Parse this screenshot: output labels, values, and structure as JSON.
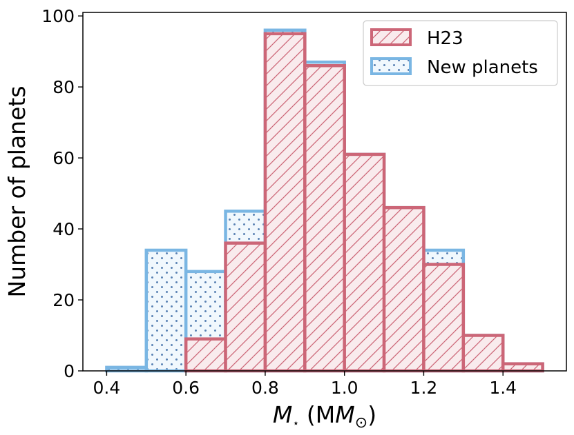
{
  "chart_data": {
    "type": "bar",
    "subtype": "overlaid-histogram",
    "xlabel_main": "M",
    "xlabel_sub": "⋆",
    "xlabel_unit_open": " (M",
    "xlabel_unit_sub": "⊙",
    "xlabel_unit_close": ")",
    "ylabel": "Number of planets",
    "xlim": [
      0.34,
      1.56
    ],
    "ylim": [
      0,
      101
    ],
    "xticks": [
      0.4,
      0.6,
      0.8,
      1.0,
      1.2,
      1.4
    ],
    "xtick_labels": [
      "0.4",
      "0.6",
      "0.8",
      "1.0",
      "1.2",
      "1.4"
    ],
    "yticks": [
      0,
      20,
      40,
      60,
      80,
      100
    ],
    "ytick_labels": [
      "0",
      "20",
      "40",
      "60",
      "80",
      "100"
    ],
    "bin_edges": [
      0.4,
      0.5,
      0.6,
      0.7,
      0.8,
      0.9,
      1.0,
      1.1,
      1.2,
      1.3,
      1.4,
      1.5
    ],
    "series": [
      {
        "name": "New planets",
        "legend_label": "New planets",
        "edge_color": "#7ab6e3",
        "fill_color": "#f1f8fd",
        "pattern": "dots",
        "values": [
          1,
          34,
          28,
          45,
          96,
          87,
          61,
          46,
          34,
          10,
          2
        ]
      },
      {
        "name": "H23",
        "legend_label": "H23",
        "edge_color": "#cc6677",
        "fill_color": "#f9ebed",
        "pattern": "hatch",
        "values": [
          0,
          0,
          9,
          36,
          95,
          86,
          61,
          46,
          30,
          10,
          2
        ]
      }
    ],
    "legend_position": "top-right"
  }
}
